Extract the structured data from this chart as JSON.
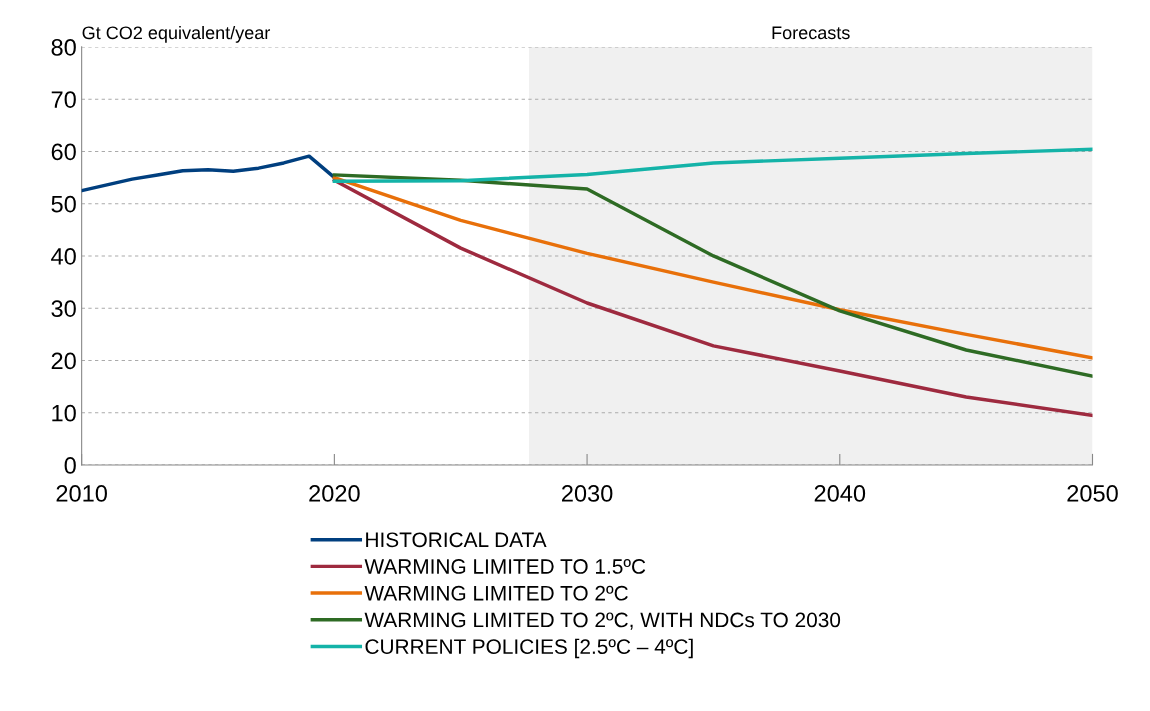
{
  "chart_data": {
    "type": "line",
    "ylabel": "Gt CO2 equivalent/year",
    "xlim": [
      2010,
      2050
    ],
    "xticks": [
      2010,
      2020,
      2030,
      2040,
      2050
    ],
    "ylim": [
      0,
      80
    ],
    "yticks": [
      0,
      10,
      20,
      30,
      40,
      50,
      60,
      70,
      80
    ],
    "grid": "y",
    "legend": "bottom",
    "marker": "none",
    "line_style": "solid",
    "bands": [
      {
        "axis": "x",
        "from": 2027.7,
        "to": 2050,
        "label": "Forecasts",
        "color": "#f0f0f0"
      }
    ],
    "series": [
      {
        "name": "HISTORICAL DATA",
        "color": "#003f7f",
        "x": [
          2010,
          2011,
          2012,
          2013,
          2014,
          2015,
          2016,
          2017,
          2018,
          2019,
          2020
        ],
        "values": [
          52.5,
          53.6,
          54.7,
          55.5,
          56.3,
          56.5,
          56.2,
          56.8,
          57.8,
          59.1,
          55.0
        ]
      },
      {
        "name": "WARMING LIMITED TO 1.5ºC",
        "color": "#9e2a3f",
        "x": [
          2020,
          2025,
          2030,
          2035,
          2040,
          2045,
          2050
        ],
        "values": [
          54.5,
          41.5,
          31.0,
          22.8,
          18.0,
          13.0,
          9.5
        ]
      },
      {
        "name": "WARMING LIMITED TO 2ºC",
        "color": "#e8700a",
        "x": [
          2020,
          2025,
          2030,
          2035,
          2040,
          2045,
          2050
        ],
        "values": [
          55.0,
          46.8,
          40.5,
          35.0,
          29.7,
          25.0,
          20.5
        ]
      },
      {
        "name": "WARMING LIMITED TO 2ºC, WITH NDCs TO 2030",
        "color": "#2e6b24",
        "x": [
          2020,
          2025,
          2030,
          2035,
          2040,
          2045,
          2050
        ],
        "values": [
          55.5,
          54.5,
          52.8,
          40.0,
          29.5,
          22.0,
          17.0
        ]
      },
      {
        "name": "CURRENT POLICIES [2.5ºC – 4ºC]",
        "color": "#14b3a8",
        "x": [
          2020,
          2025,
          2030,
          2035,
          2040,
          2045,
          2050
        ],
        "values": [
          54.3,
          54.4,
          55.6,
          57.8,
          58.7,
          59.6,
          60.4
        ]
      }
    ]
  }
}
